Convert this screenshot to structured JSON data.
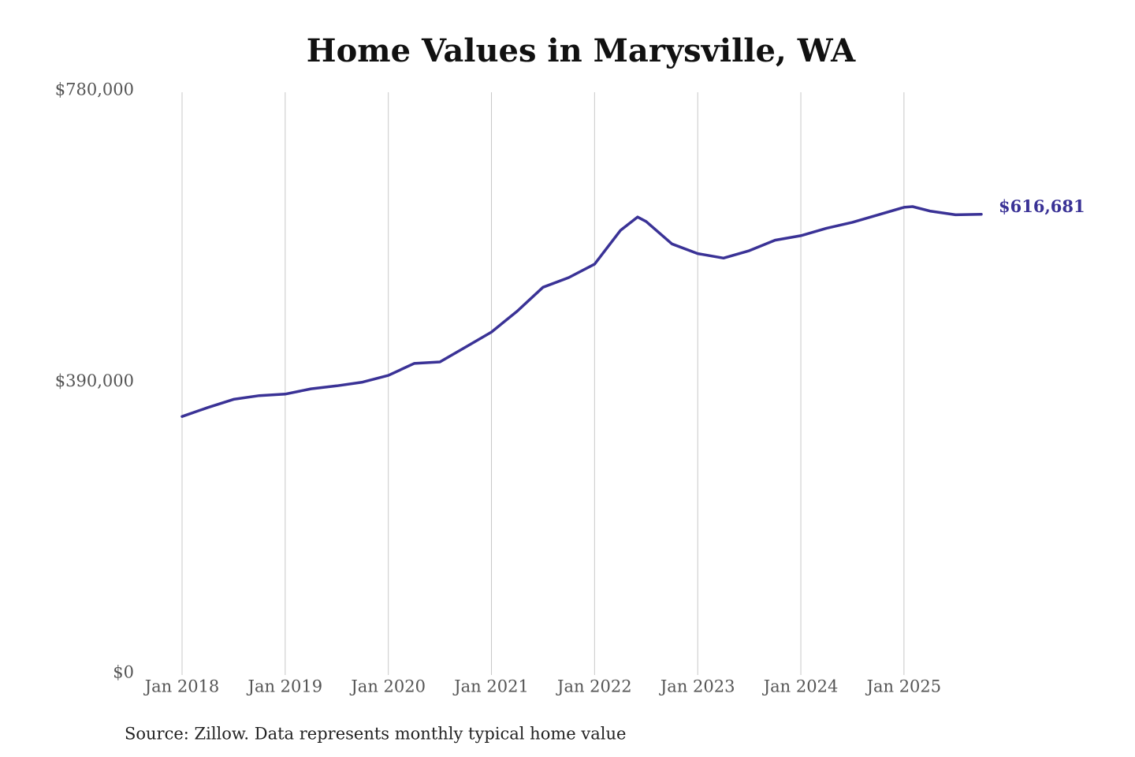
{
  "chart_data": {
    "type": "line",
    "title": "Home Values in Marysville, WA",
    "source": "Source: Zillow. Data represents monthly typical home value",
    "x": [
      "2018-01",
      "2018-04",
      "2018-07",
      "2018-10",
      "2019-01",
      "2019-04",
      "2019-07",
      "2019-10",
      "2020-01",
      "2020-04",
      "2020-07",
      "2020-10",
      "2021-01",
      "2021-04",
      "2021-07",
      "2021-10",
      "2022-01",
      "2022-04",
      "2022-06",
      "2022-07",
      "2022-10",
      "2023-01",
      "2023-04",
      "2023-07",
      "2023-10",
      "2024-01",
      "2024-04",
      "2024-07",
      "2024-10",
      "2025-01",
      "2025-02",
      "2025-04",
      "2025-07",
      "2025-10"
    ],
    "series": [
      {
        "color": "#3a3296",
        "values": [
          346000,
          358000,
          369000,
          374000,
          376000,
          383000,
          387000,
          392000,
          401000,
          417000,
          419000,
          439000,
          459000,
          487000,
          519000,
          532000,
          550000,
          595000,
          613000,
          607000,
          577000,
          564000,
          558000,
          568000,
          582000,
          588000,
          598000,
          606000,
          616000,
          626000,
          627000,
          621000,
          616000,
          616681
        ],
        "value_labels": [
          null,
          null,
          null,
          null,
          null,
          null,
          null,
          null,
          null,
          null,
          null,
          null,
          null,
          null,
          null,
          null,
          null,
          null,
          null,
          null,
          null,
          null,
          null,
          null,
          null,
          null,
          null,
          null,
          null,
          null,
          null,
          null,
          null,
          "$616,681"
        ]
      }
    ],
    "xlim": [
      "2018-01",
      "2025-10"
    ],
    "xticks": [
      {
        "value": "2018-01",
        "label": "Jan 2018"
      },
      {
        "value": "2019-01",
        "label": "Jan 2019"
      },
      {
        "value": "2020-01",
        "label": "Jan 2020"
      },
      {
        "value": "2021-01",
        "label": "Jan 2021"
      },
      {
        "value": "2022-01",
        "label": "Jan 2022"
      },
      {
        "value": "2023-01",
        "label": "Jan 2023"
      },
      {
        "value": "2024-01",
        "label": "Jan 2024"
      },
      {
        "value": "2025-01",
        "label": "Jan 2025"
      }
    ],
    "ylim": [
      0,
      780000
    ],
    "yticks": [
      {
        "value": 0,
        "label": "$0"
      },
      {
        "value": 390000,
        "label": "$390,000"
      },
      {
        "value": 780000,
        "label": "$780,000"
      }
    ],
    "grid": "x"
  }
}
